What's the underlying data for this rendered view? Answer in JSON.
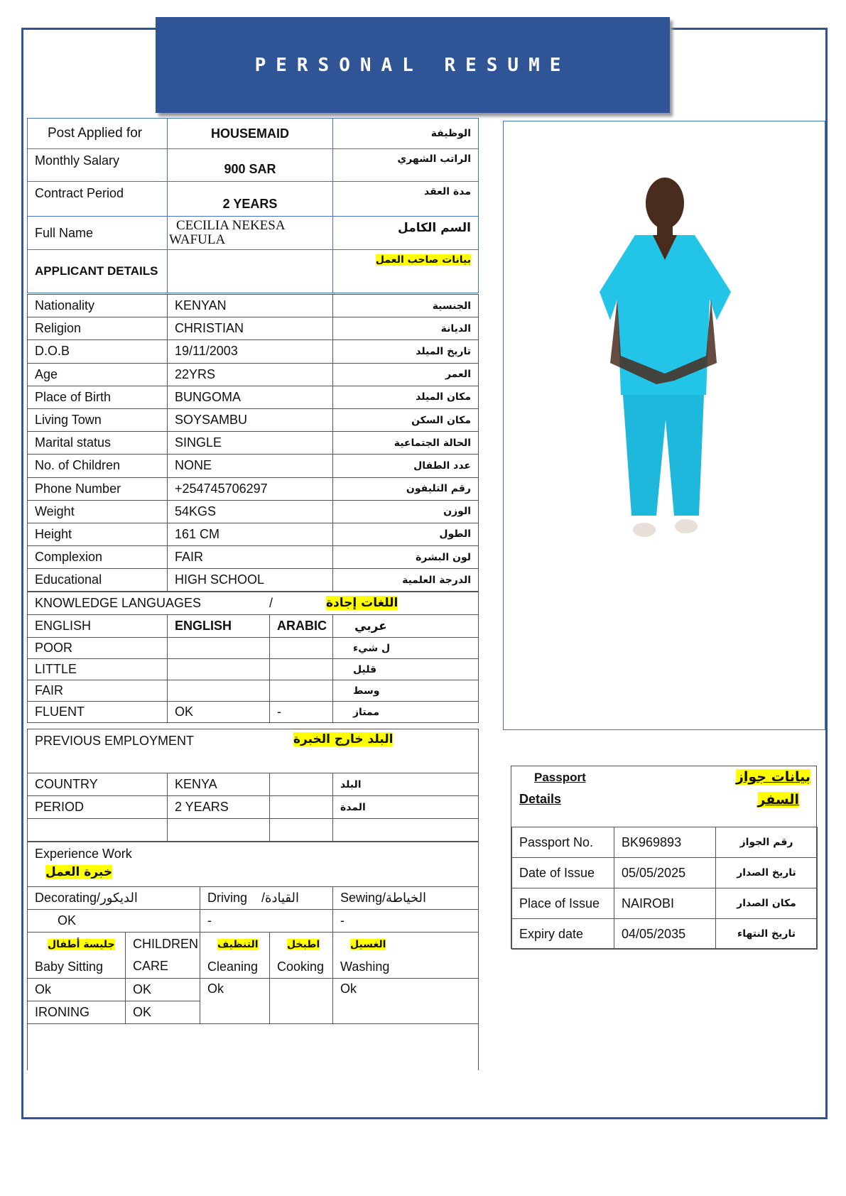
{
  "title": "PERSONAL RESUME",
  "header_rows": [
    {
      "label": "Post Applied for",
      "value": "HOUSEMAID",
      "arabic": "الوظيفة"
    },
    {
      "label": "Monthly Salary",
      "value": "900 SAR",
      "arabic": "الراتب الشهري"
    },
    {
      "label": "Contract Period",
      "value": "2 YEARS",
      "arabic": "مدة العقد"
    },
    {
      "label": "Full Name",
      "value": "CECILIA NEKESA WAFULA",
      "arabic": "السم الكامل"
    },
    {
      "label": "APPLICANT DETAILS",
      "value": "",
      "arabic": "بيانات صاحب العمل"
    }
  ],
  "details": [
    {
      "label": "Nationality",
      "value": "KENYAN",
      "arabic": "الجنسية"
    },
    {
      "label": "Religion",
      "value": "CHRISTIAN",
      "arabic": "الديانة"
    },
    {
      "label": "D.O.B",
      "value": "19/11/2003",
      "arabic": "تاريخ الميلد"
    },
    {
      "label": "Age",
      "value": "22YRS",
      "arabic": "العمر"
    },
    {
      "label": "Place of Birth",
      "value": "BUNGOMA",
      "arabic": "مكان الميلد"
    },
    {
      "label": "Living Town",
      "value": "SOYSAMBU",
      "arabic": "مكان السكن"
    },
    {
      "label": "Marital status",
      "value": "SINGLE",
      "arabic": "الحالة الجتماعية"
    },
    {
      "label": "No. of Children",
      "value": "NONE",
      "arabic": "عدد الطفال"
    },
    {
      "label": "Phone Number",
      "value": "+254745706297",
      "arabic": "رقم التليفون"
    },
    {
      "label": "Weight",
      "value": "54KGS",
      "arabic": "الوزن"
    },
    {
      "label": "Height",
      "value": "161 CM",
      "arabic": "الطول"
    },
    {
      "label": "Complexion",
      "value": "FAIR",
      "arabic": "لون البشرة"
    },
    {
      "label": "Educational",
      "value": "HIGH SCHOOL",
      "arabic": "الدرجة العلمية"
    }
  ],
  "languages": {
    "title": "KNOWLEDGE LANGUAGES",
    "slash": "/",
    "title_ar": "اللغات إجادة",
    "header": [
      "ENGLISH",
      "ENGLISH",
      "ARABIC",
      "عربي"
    ],
    "rows": [
      [
        "POOR",
        "",
        "",
        "ل شيء"
      ],
      [
        "LITTLE",
        "",
        "",
        "قليل"
      ],
      [
        "FAIR",
        "",
        "",
        "وسط"
      ],
      [
        "FLUENT",
        "OK",
        "-",
        "ممتاز"
      ]
    ]
  },
  "employment": {
    "title": "PREVIOUS  EMPLOYMENT",
    "title_ar": "البلد خارج الخبرة",
    "rows": [
      [
        "COUNTRY",
        "KENYA",
        "",
        "البلد"
      ],
      [
        "PERIOD",
        "2 YEARS",
        "",
        "المدة"
      ],
      [
        "",
        "",
        "",
        ""
      ]
    ]
  },
  "experience": {
    "title": "Experience Work",
    "title_ar": "خبرة العمل",
    "decorating": "Decorating/الديكور",
    "driving": "Driving",
    "driving_ar": "/القيادة",
    "sewing": "Sewing/الخياطة",
    "decorating_val": "OK",
    "driving_val": "-",
    "sewing_val": "-",
    "baby_ar": "جليسة أطفال",
    "baby": "Baby Sitting",
    "children_1": "CHILDREN",
    "children_2": "CARE",
    "cleaning_ar": "التنظيف",
    "cleaning": "Cleaning",
    "cooking_ar": "اطبخل",
    "cooking": "Cooking",
    "washing_ar": "الغسيل",
    "washing": "Washing",
    "baby_val": "Ok",
    "children_val": "OK",
    "cleaning_val": "Ok",
    "washing_val": "Ok",
    "ironing": "IRONING",
    "ironing_val": "OK"
  },
  "passport": {
    "title_1": "Passport",
    "title_2": "Details",
    "title_ar_1": "بيانات جواز",
    "title_ar_2": "السفر",
    "rows": [
      {
        "label": "Passport No.",
        "value": "BK969893",
        "arabic": "رقم الجواز"
      },
      {
        "label": "Date of Issue",
        "value": "05/05/2025",
        "arabic": "تاريخ الصدار"
      },
      {
        "label": "Place of Issue",
        "value": "NAIROBI",
        "arabic": "مكان الصدار"
      },
      {
        "label": "Expiry date",
        "value": "04/05/2035",
        "arabic": "تاريخ النتهاء"
      }
    ]
  },
  "colors": {
    "banner": "#2f5597",
    "highlight": "#ffff00",
    "scrubs": "#22c4e8"
  }
}
